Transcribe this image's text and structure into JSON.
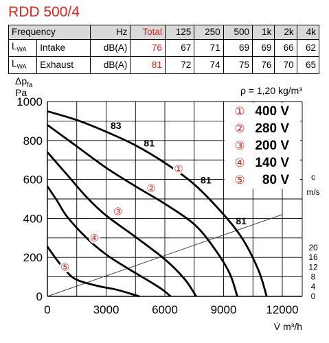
{
  "title": "RDD 500/4",
  "noise_table": {
    "header": [
      "Frequency",
      "Hz",
      "Total",
      "125",
      "250",
      "500",
      "1k",
      "2k",
      "4k"
    ],
    "rows": [
      {
        "label": "L",
        "sub": "WA",
        "name": "Intake",
        "unit": "dB(A)",
        "total": "76",
        "values": [
          "67",
          "71",
          "69",
          "69",
          "66",
          "62"
        ]
      },
      {
        "label": "L",
        "sub": "WA",
        "name": "Exhaust",
        "unit": "dB(A)",
        "total": "81",
        "values": [
          "72",
          "74",
          "75",
          "76",
          "70",
          "65"
        ]
      }
    ]
  },
  "chart_data": {
    "type": "line",
    "ylabel": "Δp",
    "ylabel_sub": "fa",
    "yunit": "Pa",
    "xlabel": "V̇ m³/h",
    "density_note": "ρ = 1,20 kg/m³",
    "xlim": [
      0,
      12000
    ],
    "ylim": [
      0,
      1000
    ],
    "xticks": [
      "0",
      "3000",
      "6000",
      "9000",
      "12000"
    ],
    "yticks": [
      "0",
      "200",
      "400",
      "600",
      "800",
      "1000"
    ],
    "velocity_axis": {
      "label": "c",
      "unit": "m/s",
      "ticks": [
        "0",
        "4",
        "8",
        "12",
        "16",
        "20"
      ]
    },
    "grid": true,
    "legend": {
      "position": "top-right",
      "entries": [
        {
          "marker": "①",
          "label": "400 V"
        },
        {
          "marker": "②",
          "label": "280 V"
        },
        {
          "marker": "③",
          "label": "200 V"
        },
        {
          "marker": "④",
          "label": "140 V"
        },
        {
          "marker": "⑤",
          "label": "80 V"
        }
      ]
    },
    "series": [
      {
        "marker": "①",
        "x": [
          0,
          1500,
          3000,
          4500,
          6000,
          7500,
          9000,
          10000,
          10800,
          11200
        ],
        "y": [
          950,
          905,
          845,
          775,
          685,
          575,
          420,
          290,
          130,
          0
        ]
      },
      {
        "marker": "②",
        "x": [
          0,
          1500,
          3000,
          4500,
          6000,
          7500,
          8500,
          9300,
          9700
        ],
        "y": [
          880,
          770,
          660,
          565,
          475,
          370,
          250,
          120,
          0
        ]
      },
      {
        "marker": "③",
        "x": [
          0,
          1000,
          2000,
          3000,
          4500,
          6000,
          7000,
          7600
        ],
        "y": [
          740,
          625,
          510,
          415,
          305,
          190,
          90,
          0
        ]
      },
      {
        "marker": "④",
        "x": [
          0,
          500,
          1000,
          2000,
          3000,
          4000,
          5000,
          5800,
          6300
        ],
        "y": [
          565,
          490,
          410,
          300,
          215,
          150,
          90,
          40,
          0
        ]
      },
      {
        "marker": "⑤",
        "x": [
          0,
          500,
          1000,
          1500,
          2500,
          3500,
          4200,
          4700
        ],
        "y": [
          255,
          185,
          125,
          85,
          55,
          35,
          15,
          0
        ]
      }
    ],
    "system_line": {
      "x": [
        0,
        12000
      ],
      "y": [
        0,
        420
      ]
    },
    "annotations": [
      {
        "text": "83",
        "x": 3500,
        "y": 860
      },
      {
        "text": "81",
        "x": 5200,
        "y": 770
      },
      {
        "text": "81",
        "x": 8100,
        "y": 580
      },
      {
        "text": "81",
        "x": 9900,
        "y": 370
      }
    ],
    "curve_markers": [
      {
        "text": "①",
        "x": 6700,
        "y": 655
      },
      {
        "text": "②",
        "x": 5300,
        "y": 555
      },
      {
        "text": "③",
        "x": 3600,
        "y": 435
      },
      {
        "text": "④",
        "x": 2400,
        "y": 300
      },
      {
        "text": "⑤",
        "x": 900,
        "y": 150
      }
    ]
  },
  "colors": {
    "title": "#e2231a",
    "marker": "#e2231a",
    "total": "#e2231a",
    "curve": "#000000",
    "grid": "#000000"
  }
}
